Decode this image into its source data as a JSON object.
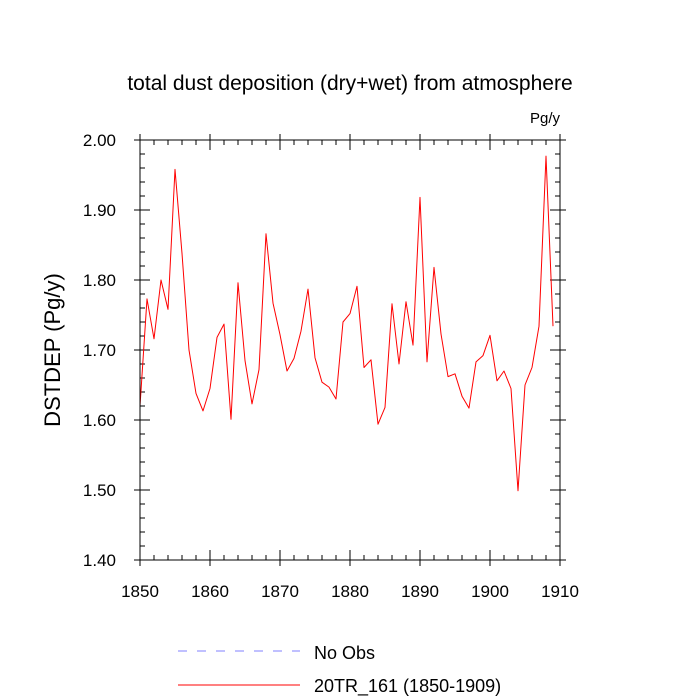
{
  "chart_data": {
    "type": "line",
    "title": "total dust deposition (dry+wet) from atmosphere",
    "units": "Pg/y",
    "xlabel": "",
    "ylabel": "DSTDEP  (Pg/y)",
    "xlim": [
      1850,
      1910
    ],
    "ylim": [
      1.4,
      2.0
    ],
    "x_ticks": [
      1850,
      1860,
      1870,
      1880,
      1890,
      1900,
      1910
    ],
    "x_tick_labels": [
      "1850",
      "1860",
      "1870",
      "1880",
      "1890",
      "1900",
      "1910"
    ],
    "y_ticks": [
      1.4,
      1.5,
      1.6,
      1.7,
      1.8,
      1.9,
      2.0
    ],
    "y_tick_labels": [
      "1.40",
      "1.50",
      "1.60",
      "1.70",
      "1.80",
      "1.90",
      "2.00"
    ],
    "legend_position": "bottom",
    "series": [
      {
        "name": "No Obs",
        "color": "#8080ff",
        "dash": "dashed",
        "x": [],
        "values": []
      },
      {
        "name": "20TR_161 (1850-1909)",
        "color": "#ff0000",
        "dash": "solid",
        "x": [
          1850,
          1851,
          1852,
          1853,
          1854,
          1855,
          1856,
          1857,
          1858,
          1859,
          1860,
          1861,
          1862,
          1863,
          1864,
          1865,
          1866,
          1867,
          1868,
          1869,
          1870,
          1871,
          1872,
          1873,
          1874,
          1875,
          1876,
          1877,
          1878,
          1879,
          1880,
          1881,
          1882,
          1883,
          1884,
          1885,
          1886,
          1887,
          1888,
          1889,
          1890,
          1891,
          1892,
          1893,
          1894,
          1895,
          1896,
          1897,
          1898,
          1899,
          1900,
          1901,
          1902,
          1903,
          1904,
          1905,
          1906,
          1907,
          1908,
          1909
        ],
        "values": [
          1.62,
          1.773,
          1.716,
          1.8,
          1.758,
          1.958,
          1.838,
          1.7,
          1.638,
          1.613,
          1.645,
          1.718,
          1.737,
          1.601,
          1.796,
          1.685,
          1.623,
          1.672,
          1.866,
          1.767,
          1.722,
          1.67,
          1.688,
          1.727,
          1.787,
          1.689,
          1.654,
          1.647,
          1.63,
          1.74,
          1.752,
          1.791,
          1.675,
          1.686,
          1.594,
          1.618,
          1.766,
          1.68,
          1.769,
          1.707,
          1.918,
          1.683,
          1.818,
          1.723,
          1.662,
          1.666,
          1.634,
          1.617,
          1.683,
          1.692,
          1.721,
          1.656,
          1.67,
          1.645,
          1.499,
          1.65,
          1.675,
          1.734,
          1.977,
          1.734
        ]
      }
    ]
  }
}
